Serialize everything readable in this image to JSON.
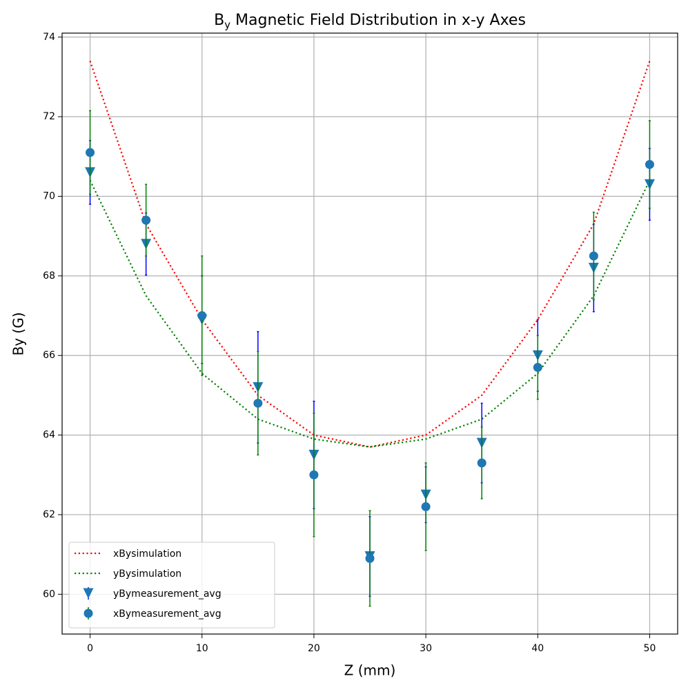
{
  "chart_data": {
    "type": "line",
    "title": [
      "B",
      "y",
      " Magnetic Field Distribution in x-y Axes"
    ],
    "xlabel": "Z (mm)",
    "ylabel": "By (G)",
    "x": [
      0,
      5,
      10,
      15,
      20,
      25,
      30,
      35,
      40,
      45,
      50
    ],
    "xlim": [
      -2.5,
      52.5
    ],
    "ylim": [
      59.0,
      74.1
    ],
    "xticks": [
      0,
      10,
      20,
      30,
      40,
      50
    ],
    "yticks": [
      60,
      62,
      64,
      66,
      68,
      70,
      72,
      74
    ],
    "grid": true,
    "legend": "lower left",
    "series": [
      {
        "name": "xBysimulation",
        "type": "line",
        "linestyle": "dotted",
        "color": "#ff0000",
        "values": [
          73.4,
          69.3,
          66.9,
          65.0,
          64.0,
          63.7,
          64.0,
          65.0,
          66.9,
          69.3,
          73.4
        ]
      },
      {
        "name": "yBysimulation",
        "type": "line",
        "linestyle": "dotted",
        "color": "#008000",
        "values": [
          70.4,
          67.5,
          65.55,
          64.4,
          63.9,
          63.7,
          63.9,
          64.4,
          65.55,
          67.5,
          70.4
        ]
      },
      {
        "name": "yBymeasurement_avg",
        "type": "errorbar",
        "marker": "v",
        "color": "#1f77b4",
        "ecolor": "#0000ff",
        "values": [
          70.6,
          68.8,
          66.9,
          65.2,
          63.5,
          60.95,
          62.5,
          63.8,
          66.0,
          68.2,
          70.3
        ],
        "errors": [
          0.8,
          0.78,
          1.1,
          1.4,
          1.35,
          1.0,
          0.7,
          1.0,
          0.9,
          1.1,
          0.9
        ]
      },
      {
        "name": "xBymeasurement_avg",
        "type": "errorbar",
        "marker": "o",
        "color": "#1f77b4",
        "ecolor": "#008000",
        "values": [
          71.1,
          69.4,
          67.0,
          64.8,
          63.0,
          60.9,
          62.2,
          63.3,
          65.7,
          68.5,
          70.8
        ],
        "errors": [
          1.05,
          0.9,
          1.5,
          1.3,
          1.55,
          1.2,
          1.1,
          0.9,
          0.8,
          1.1,
          1.1
        ]
      }
    ]
  }
}
